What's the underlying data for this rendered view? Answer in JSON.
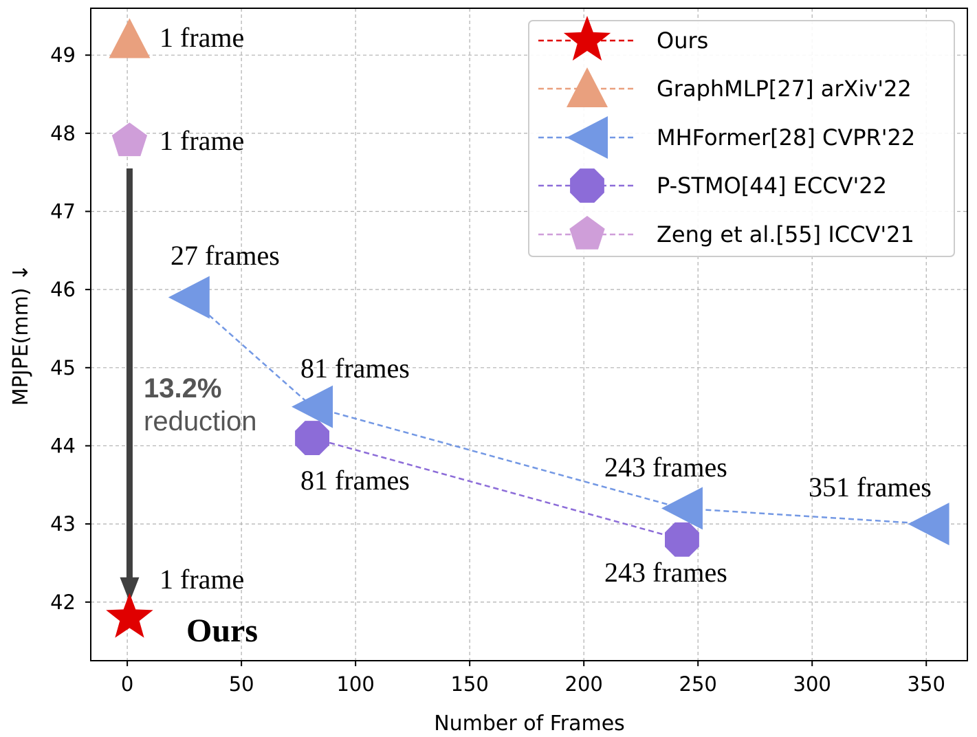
{
  "chart_data": {
    "type": "scatter",
    "xlabel": "Number of Frames",
    "ylabel": "MPJPE(mm) ↓",
    "xlim": [
      -16,
      368
    ],
    "ylim": [
      41.25,
      49.6
    ],
    "xticks": [
      "0",
      "50",
      "100",
      "150",
      "200",
      "250",
      "300",
      "350"
    ],
    "yticks": [
      "42",
      "43",
      "44",
      "45",
      "46",
      "47",
      "48",
      "49"
    ],
    "grid": true,
    "legend_position": "top-right",
    "series": [
      {
        "name": "Ours",
        "marker": "star",
        "color": "#e00000",
        "x": [
          1
        ],
        "y": [
          41.8
        ]
      },
      {
        "name": "GraphMLP[27] arXiv'22",
        "marker": "triangle-up",
        "color": "#e9a07e",
        "x": [
          1
        ],
        "y": [
          49.2
        ]
      },
      {
        "name": "MHFormer[28] CVPR'22",
        "marker": "triangle-left",
        "color": "#7398e4",
        "x": [
          27,
          81,
          243,
          351
        ],
        "y": [
          45.9,
          44.5,
          43.2,
          43.0
        ]
      },
      {
        "name": "P-STMO[44] ECCV'22",
        "marker": "octagon",
        "color": "#8c6cd8",
        "x": [
          81,
          243
        ],
        "y": [
          44.1,
          42.8
        ]
      },
      {
        "name": "Zeng et al.[55] ICCV'21",
        "marker": "pentagon",
        "color": "#cf9ed9",
        "x": [
          1
        ],
        "y": [
          47.9
        ]
      }
    ],
    "annotations": {
      "graphmlp_frames": "1 frame",
      "zeng_frames": "1 frame",
      "ours_frames": "1 frame",
      "ours_label": "Ours",
      "mhformer_27": "27 frames",
      "mhformer_81": "81 frames",
      "mhformer_243": "243 frames",
      "mhformer_351": "351 frames",
      "pstmo_81": "81 frames",
      "pstmo_243": "243 frames",
      "reduction_pct": "13.2%",
      "reduction_word": "reduction"
    },
    "arrow_color": "#404040"
  }
}
